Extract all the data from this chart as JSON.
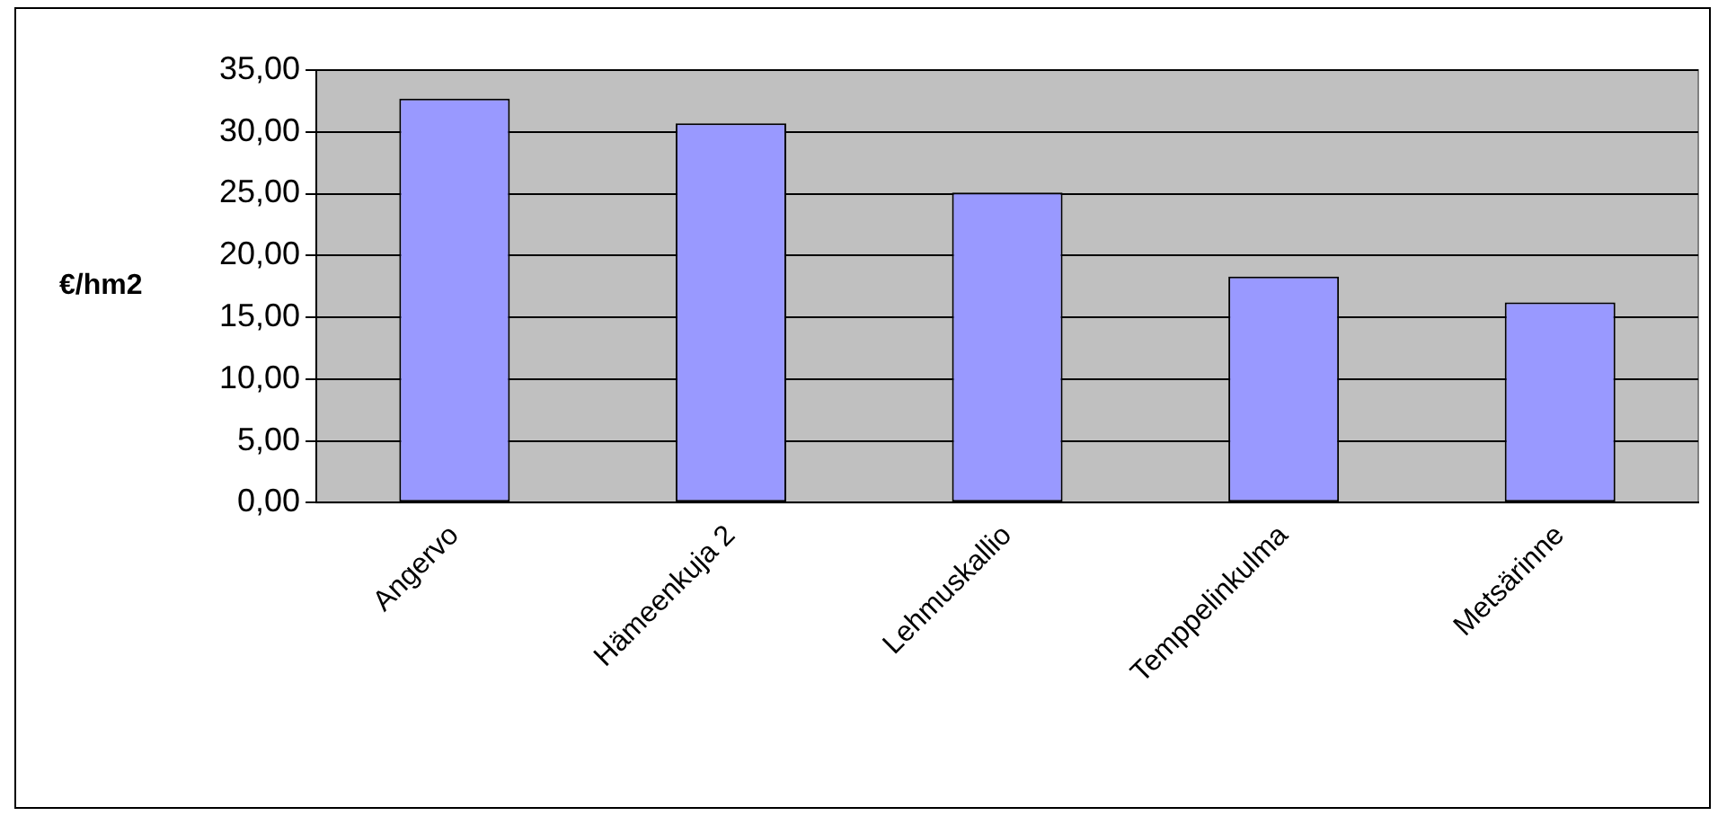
{
  "chart_data": {
    "type": "bar",
    "categories": [
      "Angervo",
      "Hämeenkuja 2",
      "Lehmuskallio",
      "Temppelinkulma",
      "Metsärinne"
    ],
    "values": [
      32.7,
      30.7,
      25.1,
      18.3,
      16.2
    ],
    "color": "#9999ff",
    "ylabel": "€/hm2",
    "ylim": [
      0,
      35
    ],
    "yticks": [
      {
        "value": 0,
        "label": "0,00"
      },
      {
        "value": 5,
        "label": "5,00"
      },
      {
        "value": 10,
        "label": "10,00"
      },
      {
        "value": 15,
        "label": "15,00"
      },
      {
        "value": 20,
        "label": "20,00"
      },
      {
        "value": 25,
        "label": "25,00"
      },
      {
        "value": 30,
        "label": "30,00"
      },
      {
        "value": 35,
        "label": "35,00"
      }
    ],
    "grid": "y",
    "legend": false
  }
}
